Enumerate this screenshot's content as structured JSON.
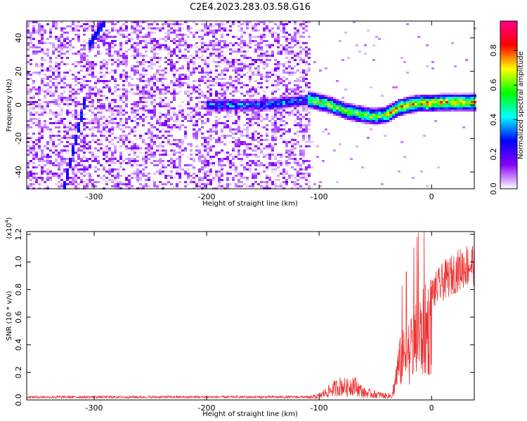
{
  "title": "C2E4.2023.283.03.58.G16",
  "chart_data": [
    {
      "type": "heatmap",
      "xlabel": "Height of straight line (km)",
      "ylabel": "Frequency (Hz)",
      "xlim": [
        -360,
        38
      ],
      "ylim": [
        -50,
        50
      ],
      "x_ticks": [
        -300,
        -200,
        -100,
        0
      ],
      "y_ticks": [
        -40,
        -20,
        0,
        20,
        40
      ],
      "colorbar": {
        "label": "Normalized spectral amplitude",
        "range": [
          0,
          0.97
        ],
        "ticks": [
          "0.0",
          "0.2",
          "0.4",
          "0.6",
          "0.8"
        ],
        "tick_values": [
          0,
          0.2,
          0.4,
          0.6,
          0.8
        ],
        "colors": [
          "#ffffff",
          "#8800ff",
          "#0000ff",
          "#00ffff",
          "#00ff00",
          "#ffff00",
          "#ff0000",
          "#ff0088"
        ]
      },
      "noise_region": {
        "x": [
          -360,
          -108
        ],
        "amplitude_range": [
          0.02,
          0.18
        ]
      },
      "ridge": {
        "description_points_x": [
          -190,
          -150,
          -108,
          -90,
          -75,
          -60,
          -50,
          -40,
          -30,
          -20,
          -10,
          0,
          10,
          20,
          38
        ],
        "description_points_y": [
          0,
          0,
          3,
          0,
          -4,
          -6,
          -7,
          -6,
          -2,
          0,
          1,
          1,
          1.5,
          1.5,
          1.5
        ],
        "peak_amplitude": 0.9
      },
      "streaks": [
        {
          "x": [
            -327,
            -307
          ],
          "y": [
            -50,
            5
          ]
        },
        {
          "x": [
            -305,
            -290
          ],
          "y": [
            35,
            50
          ]
        }
      ]
    },
    {
      "type": "line",
      "xlabel": "Height of straight line (km)",
      "ylabel": "SNR (10 * v/v)",
      "y_multiplier": "(x10",
      "y_multiplier_exp": "4",
      "y_multiplier_close": ")",
      "xlim": [
        -360,
        38
      ],
      "ylim": [
        0,
        1.22
      ],
      "x_ticks": [
        -300,
        -200,
        -100,
        0
      ],
      "y_ticks": [
        "0.0",
        "0.2",
        "0.4",
        "0.6",
        "0.8",
        "1.0",
        "1.2"
      ],
      "y_tick_values": [
        0,
        0.2,
        0.4,
        0.6,
        0.8,
        1.0,
        1.2
      ],
      "series_color": "#ee3333",
      "envelope_x": [
        -360,
        -200,
        -140,
        -110,
        -100,
        -90,
        -80,
        -75,
        -70,
        -65,
        -60,
        -50,
        -40,
        -35,
        -30,
        -27,
        -20,
        -10,
        0,
        10,
        20,
        30,
        38
      ],
      "envelope_y": [
        0.02,
        0.02,
        0.022,
        0.025,
        0.05,
        0.12,
        0.18,
        0.15,
        0.2,
        0.14,
        0.09,
        0.07,
        0.05,
        0.05,
        0.35,
        0.45,
        0.55,
        0.7,
        0.85,
        0.95,
        1.02,
        1.08,
        1.1
      ]
    }
  ]
}
